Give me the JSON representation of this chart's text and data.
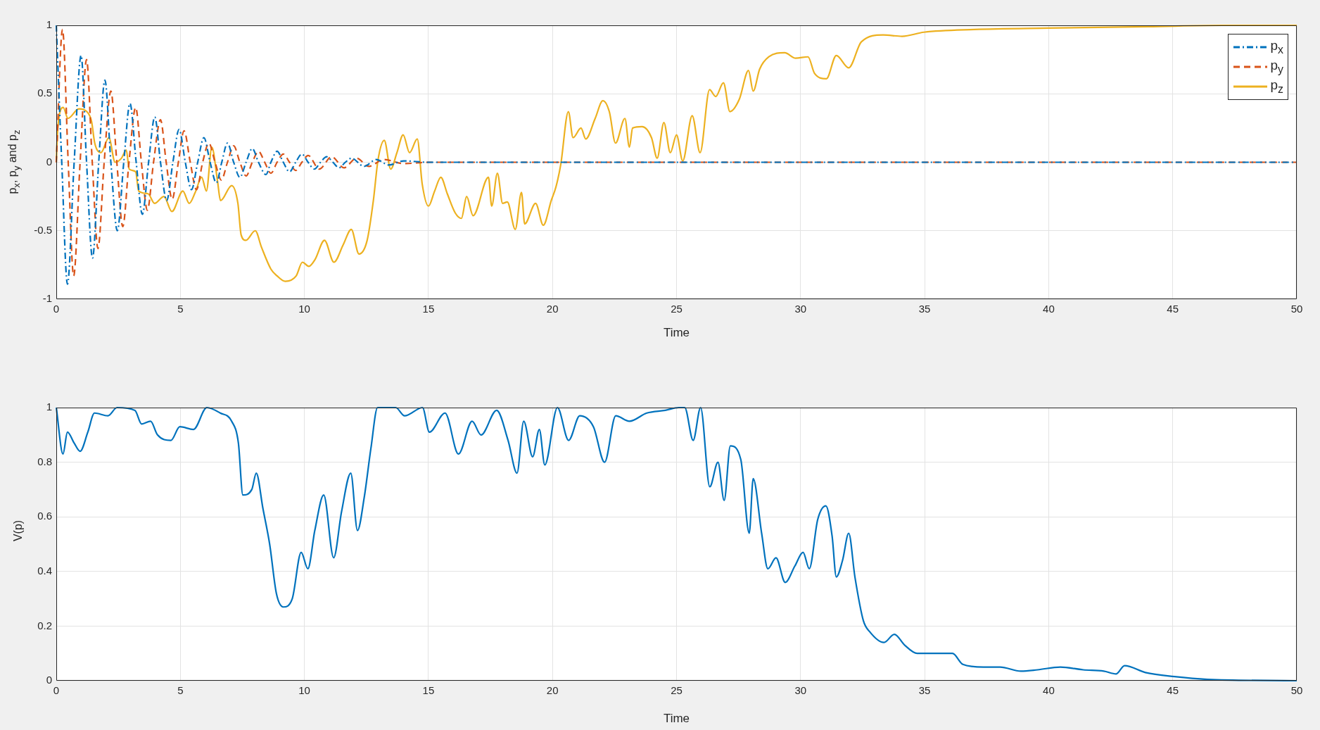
{
  "chart_data": [
    {
      "type": "line",
      "xlabel": "Time",
      "ylabel": "p$_{x}$, p$_{y}$ and p$_{z}$",
      "xlim": [
        0,
        50
      ],
      "xticks": [
        0,
        5,
        10,
        15,
        20,
        25,
        30,
        35,
        40,
        45,
        50
      ],
      "ylim": [
        -1,
        1
      ],
      "yticks": [
        -1,
        -0.5,
        0,
        0.5,
        1
      ],
      "grid": true,
      "legend": "top right",
      "marker": "none",
      "series": [
        {
          "name": "p$_{x}$",
          "color": "#0072bd",
          "line_style": "dashdot",
          "x": [
            0,
            0.22,
            0.45,
            0.72,
            1.0,
            1.22,
            1.46,
            1.71,
            1.96,
            2.2,
            2.46,
            2.72,
            2.97,
            3.22,
            3.47,
            3.72,
            3.97,
            4.2,
            4.45,
            4.7,
            4.95,
            5.2,
            5.45,
            5.7,
            5.95,
            6.2,
            6.45,
            6.67,
            6.9,
            7.15,
            7.4,
            7.65,
            7.9,
            8.15,
            8.45,
            8.65,
            8.9,
            9.15,
            9.4,
            9.65,
            9.9,
            10.15,
            10.4,
            10.65,
            10.9,
            11.15,
            11.4,
            11.65,
            11.9,
            12.4,
            12.9,
            13.4,
            14,
            15,
            50
          ],
          "values": [
            1,
            0,
            -0.89,
            0,
            0.78,
            0,
            -0.7,
            0,
            0.6,
            0,
            -0.5,
            0,
            0.43,
            0,
            -0.38,
            0,
            0.33,
            0,
            -0.28,
            0,
            0.24,
            0,
            -0.2,
            0,
            0.18,
            0,
            -0.15,
            0,
            0.14,
            0,
            -0.11,
            0,
            0.1,
            0,
            -0.09,
            0,
            0.08,
            0,
            -0.07,
            0,
            0.06,
            0,
            -0.05,
            0,
            0.04,
            0,
            -0.04,
            0,
            0.03,
            -0.03,
            0.02,
            -0.02,
            0.01,
            0,
            0
          ]
        },
        {
          "name": "p$_{y}$",
          "color": "#d95319",
          "line_style": "dashed",
          "x": [
            0,
            0.25,
            0.48,
            0.7,
            0.96,
            1.22,
            1.45,
            1.68,
            1.93,
            2.2,
            2.44,
            2.68,
            2.93,
            3.2,
            3.43,
            3.67,
            3.92,
            4.2,
            4.43,
            4.67,
            4.92,
            5.15,
            5.4,
            5.65,
            5.9,
            6.15,
            6.4,
            6.65,
            6.9,
            7.15,
            7.4,
            7.65,
            7.9,
            8.15,
            8.4,
            8.65,
            8.9,
            9.15,
            9.4,
            9.65,
            9.9,
            10.15,
            10.6,
            11.1,
            11.6,
            12.1,
            12.6,
            13.2,
            14,
            15,
            50
          ],
          "values": [
            0,
            0.97,
            0,
            -0.83,
            0,
            0.75,
            0,
            -0.63,
            0,
            0.52,
            0,
            -0.47,
            0,
            0.4,
            0,
            -0.35,
            0,
            0.31,
            0,
            -0.27,
            0,
            0.23,
            0,
            -0.2,
            0,
            0.14,
            0,
            -0.13,
            0,
            0.12,
            0,
            -0.1,
            0,
            0.08,
            0,
            -0.08,
            0,
            0.06,
            0,
            -0.06,
            0,
            0.05,
            -0.05,
            0.04,
            -0.04,
            0.03,
            -0.03,
            0.02,
            -0.01,
            0,
            0
          ]
        },
        {
          "name": "p$_{z}$",
          "color": "#edb120",
          "line_style": "solid",
          "x": [
            0,
            0.06,
            0.28,
            0.47,
            0.91,
            1.23,
            1.42,
            1.55,
            1.8,
            2.12,
            2.37,
            2.63,
            2.82,
            2.94,
            3.2,
            3.32,
            3.7,
            3.96,
            4.34,
            4.66,
            5.1,
            5.36,
            5.6,
            5.86,
            6.05,
            6.27,
            6.5,
            6.62,
            7.07,
            7.32,
            7.45,
            7.64,
            8.02,
            8.27,
            8.65,
            8.9,
            9.23,
            9.67,
            9.92,
            10.18,
            10.43,
            10.81,
            11.19,
            11.57,
            11.89,
            12.2,
            12.53,
            12.78,
            12.97,
            13.22,
            13.48,
            13.73,
            13.98,
            14.24,
            14.55,
            14.75,
            15,
            15.25,
            15.5,
            15.76,
            16.08,
            16.33,
            16.54,
            16.8,
            17.42,
            17.55,
            17.78,
            17.99,
            18.18,
            18.5,
            18.75,
            18.88,
            19.32,
            19.63,
            19.95,
            20.14,
            20.33,
            20.64,
            20.83,
            21.15,
            21.34,
            21.72,
            22.03,
            22.29,
            22.54,
            22.92,
            23.1,
            23.23,
            23.61,
            23.99,
            24.22,
            24.49,
            24.75,
            25,
            25.25,
            25.63,
            25.95,
            26.33,
            26.58,
            26.89,
            27.15,
            27.53,
            27.9,
            28.09,
            28.35,
            28.72,
            29.36,
            29.8,
            30.3,
            30.56,
            31.04,
            31.44,
            31.94,
            32.45,
            33.33,
            34.09,
            34.97,
            37,
            40,
            44,
            47,
            50
          ],
          "values": [
            0,
            0.25,
            0.4,
            0.32,
            0.39,
            0.37,
            0.3,
            0.14,
            0.07,
            0.18,
            0,
            0.03,
            0.09,
            -0.05,
            -0.07,
            -0.21,
            -0.23,
            -0.3,
            -0.25,
            -0.36,
            -0.21,
            -0.3,
            -0.22,
            -0.11,
            -0.21,
            0.11,
            -0.14,
            -0.28,
            -0.17,
            -0.3,
            -0.53,
            -0.57,
            -0.5,
            -0.62,
            -0.78,
            -0.83,
            -0.87,
            -0.83,
            -0.73,
            -0.76,
            -0.71,
            -0.57,
            -0.73,
            -0.6,
            -0.49,
            -0.67,
            -0.57,
            -0.28,
            0.02,
            0.16,
            -0.05,
            0.07,
            0.2,
            0.07,
            0.17,
            -0.16,
            -0.32,
            -0.21,
            -0.11,
            -0.23,
            -0.37,
            -0.41,
            -0.25,
            -0.39,
            -0.11,
            -0.32,
            -0.08,
            -0.3,
            -0.29,
            -0.49,
            -0.22,
            -0.45,
            -0.3,
            -0.46,
            -0.28,
            -0.18,
            -0.02,
            0.37,
            0.18,
            0.25,
            0.17,
            0.32,
            0.45,
            0.37,
            0.14,
            0.32,
            0.11,
            0.25,
            0.26,
            0.18,
            0.03,
            0.29,
            0.07,
            0.2,
            0.01,
            0.34,
            0.07,
            0.53,
            0.48,
            0.58,
            0.37,
            0.46,
            0.67,
            0.52,
            0.68,
            0.77,
            0.8,
            0.76,
            0.77,
            0.65,
            0.61,
            0.78,
            0.69,
            0.88,
            0.93,
            0.92,
            0.95,
            0.97,
            0.98,
            0.99,
            1,
            1
          ]
        }
      ]
    },
    {
      "type": "line",
      "xlabel": "Time",
      "ylabel": "V(p)",
      "xlim": [
        0,
        50
      ],
      "xticks": [
        0,
        5,
        10,
        15,
        20,
        25,
        30,
        35,
        40,
        45,
        50
      ],
      "ylim": [
        0,
        1
      ],
      "yticks": [
        0,
        0.2,
        0.4,
        0.6,
        0.8,
        1
      ],
      "grid": true,
      "marker": "none",
      "series": [
        {
          "color": "#0072bd",
          "line_style": "solid",
          "x": [
            0,
            0.27,
            0.45,
            0.72,
            0.96,
            1.27,
            1.54,
            2.08,
            2.45,
            3.17,
            3.44,
            3.8,
            4.08,
            4.62,
            4.98,
            5.53,
            6.07,
            6.61,
            7.07,
            7.34,
            7.52,
            7.88,
            8.06,
            8.33,
            8.6,
            8.87,
            9.15,
            9.51,
            9.87,
            10.14,
            10.42,
            10.78,
            11.18,
            11.5,
            11.87,
            12.14,
            12.41,
            12.68,
            12.95,
            13.68,
            14.04,
            14.76,
            15.04,
            15.67,
            16.21,
            16.76,
            17.12,
            17.75,
            18.21,
            18.57,
            18.84,
            19.2,
            19.47,
            19.69,
            20.2,
            20.65,
            21.1,
            21.65,
            22.1,
            22.55,
            23.1,
            23.8,
            24.55,
            25.09,
            25.33,
            25.67,
            25.97,
            26.34,
            26.67,
            26.92,
            27.17,
            27.59,
            27.93,
            28.09,
            28.43,
            28.68,
            29.01,
            29.38,
            29.77,
            30.1,
            30.35,
            30.69,
            31.02,
            31.27,
            31.44,
            31.69,
            31.94,
            32.19,
            32.53,
            32.78,
            33.36,
            33.78,
            34.2,
            34.7,
            35.37,
            36.12,
            36.54,
            37.37,
            38.04,
            38.88,
            39.55,
            40.47,
            41.39,
            42.22,
            42.72,
            43.06,
            43.9,
            45.07,
            46.4,
            50
          ],
          "values": [
            1,
            0.83,
            0.91,
            0.87,
            0.84,
            0.91,
            0.98,
            0.97,
            1,
            0.99,
            0.94,
            0.95,
            0.9,
            0.88,
            0.93,
            0.92,
            1,
            0.98,
            0.95,
            0.87,
            0.68,
            0.7,
            0.76,
            0.63,
            0.5,
            0.32,
            0.27,
            0.3,
            0.47,
            0.41,
            0.55,
            0.68,
            0.45,
            0.62,
            0.76,
            0.55,
            0.67,
            0.85,
            1,
            1,
            0.97,
            1,
            0.91,
            0.98,
            0.83,
            0.95,
            0.9,
            0.99,
            0.88,
            0.76,
            0.95,
            0.82,
            0.92,
            0.79,
            1,
            0.88,
            0.97,
            0.93,
            0.8,
            0.97,
            0.95,
            0.98,
            0.99,
            1,
            1,
            0.88,
            1,
            0.71,
            0.8,
            0.66,
            0.86,
            0.81,
            0.54,
            0.74,
            0.54,
            0.41,
            0.45,
            0.36,
            0.42,
            0.47,
            0.41,
            0.59,
            0.64,
            0.53,
            0.38,
            0.44,
            0.54,
            0.38,
            0.22,
            0.18,
            0.14,
            0.17,
            0.13,
            0.1,
            0.1,
            0.1,
            0.06,
            0.05,
            0.05,
            0.035,
            0.04,
            0.05,
            0.04,
            0.035,
            0.025,
            0.055,
            0.03,
            0.015,
            0.005,
            0
          ]
        }
      ]
    }
  ]
}
